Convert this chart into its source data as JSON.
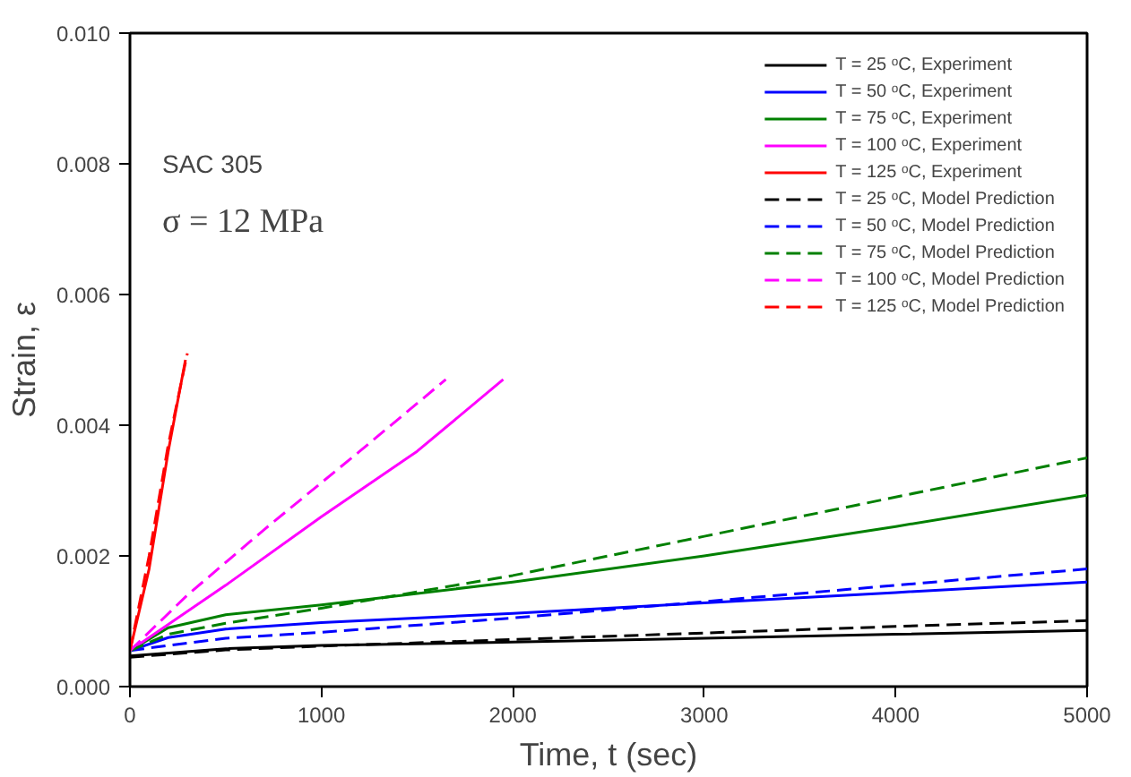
{
  "chart_data": {
    "type": "line",
    "xlabel": "Time, t (sec)",
    "ylabel": "Strain, ε",
    "annotations": [
      "SAC 305",
      "σ = 12 MPa"
    ],
    "xlim": [
      0,
      5000
    ],
    "ylim": [
      0,
      0.01
    ],
    "xticks": [
      0,
      1000,
      2000,
      3000,
      4000,
      5000
    ],
    "yticks": [
      {
        "value": 0,
        "label": "0.000"
      },
      {
        "value": 0.002,
        "label": "0.002"
      },
      {
        "value": 0.004,
        "label": "0.004"
      },
      {
        "value": 0.006,
        "label": "0.006"
      },
      {
        "value": 0.008,
        "label": "0.008"
      },
      {
        "value": 0.01,
        "label": "0.010"
      }
    ],
    "grid": false,
    "legend": "top right",
    "series": [
      {
        "name": "T = 25 ᵒC, Experiment",
        "color": "#000000",
        "line_style": "solid",
        "x": [
          0,
          500,
          1000,
          2000,
          3000,
          4000,
          5000
        ],
        "values": [
          0.00047,
          0.00058,
          0.00063,
          0.00068,
          0.00074,
          0.0008,
          0.00086
        ]
      },
      {
        "name": "T = 50 ᵒC, Experiment",
        "color": "#0000ff",
        "line_style": "solid",
        "x": [
          0,
          200,
          500,
          1000,
          2000,
          3000,
          4000,
          5000
        ],
        "values": [
          0.00055,
          0.00075,
          0.00088,
          0.00098,
          0.00112,
          0.00128,
          0.00144,
          0.0016
        ]
      },
      {
        "name": "T = 75 ᵒC, Experiment",
        "color": "#008000",
        "line_style": "solid",
        "x": [
          0,
          200,
          500,
          1000,
          2000,
          3000,
          4000,
          5000
        ],
        "values": [
          0.00055,
          0.0009,
          0.0011,
          0.00125,
          0.0016,
          0.002,
          0.00245,
          0.00293
        ]
      },
      {
        "name": "T = 100 ᵒC, Experiment",
        "color": "#ff00ff",
        "line_style": "solid",
        "x": [
          0,
          500,
          1000,
          1500,
          1950
        ],
        "values": [
          0.00055,
          0.00155,
          0.0026,
          0.0036,
          0.0047
        ]
      },
      {
        "name": "T = 125 ᵒC, Experiment",
        "color": "#ff0000",
        "line_style": "solid",
        "x": [
          0,
          100,
          200,
          290
        ],
        "values": [
          0.00055,
          0.0018,
          0.0036,
          0.005
        ]
      },
      {
        "name": "T = 25 ᵒC, Model Prediction",
        "color": "#000000",
        "line_style": "dashed",
        "x": [
          0,
          500,
          1000,
          2000,
          3000,
          4000,
          5000
        ],
        "values": [
          0.00045,
          0.00056,
          0.00062,
          0.00072,
          0.00082,
          0.00092,
          0.00101
        ]
      },
      {
        "name": "T = 50 ᵒC, Model Prediction",
        "color": "#0000ff",
        "line_style": "dashed",
        "x": [
          0,
          200,
          500,
          1000,
          2000,
          3000,
          4000,
          5000
        ],
        "values": [
          0.00055,
          0.00063,
          0.00074,
          0.00083,
          0.00105,
          0.0013,
          0.00155,
          0.0018
        ]
      },
      {
        "name": "T = 75 ᵒC, Model Prediction",
        "color": "#008000",
        "line_style": "dashed",
        "x": [
          0,
          200,
          500,
          1000,
          2000,
          3000,
          4000,
          5000
        ],
        "values": [
          0.00055,
          0.0008,
          0.00097,
          0.0012,
          0.0017,
          0.0023,
          0.0029,
          0.0035
        ]
      },
      {
        "name": "T = 100 ᵒC, Model Prediction",
        "color": "#ff00ff",
        "line_style": "dashed",
        "x": [
          0,
          300,
          700,
          1200,
          1650
        ],
        "values": [
          0.00055,
          0.0014,
          0.0024,
          0.0036,
          0.0047
        ]
      },
      {
        "name": "T = 125 ᵒC, Model Prediction",
        "color": "#ff0000",
        "line_style": "dashed",
        "x": [
          0,
          100,
          200,
          300
        ],
        "values": [
          0.00055,
          0.002,
          0.0037,
          0.0051
        ]
      }
    ]
  }
}
